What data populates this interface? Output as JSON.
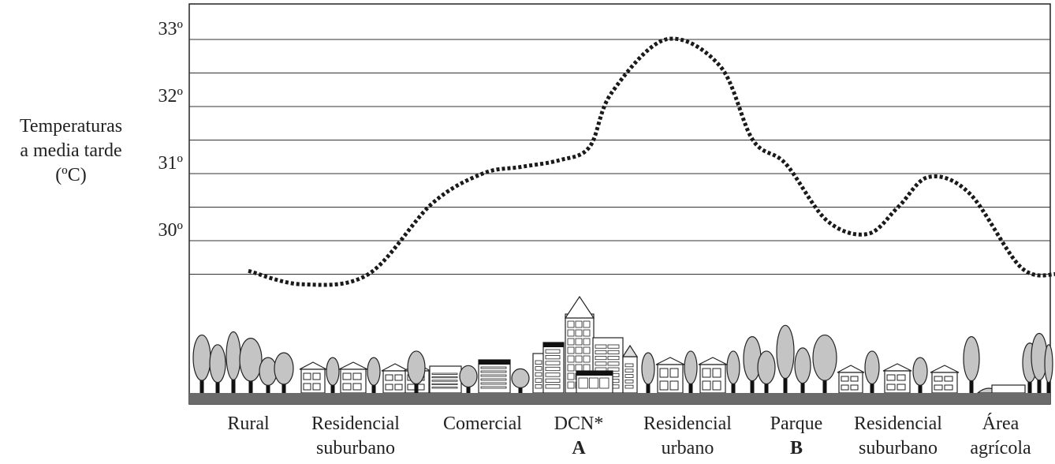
{
  "chart_data": {
    "type": "line",
    "ylabel": [
      "Temperaturas",
      "a media tarde",
      "(ºC)"
    ],
    "y_ticks": [
      "30º",
      "31º",
      "32º",
      "33º"
    ],
    "ylim": [
      29.0,
      33.5
    ],
    "grid": true,
    "line_style": "dotted",
    "categories": [
      {
        "lines": [
          "Rural"
        ],
        "mark": ""
      },
      {
        "lines": [
          "Residencial",
          "suburbano"
        ],
        "mark": ""
      },
      {
        "lines": [
          "Comercial"
        ],
        "mark": ""
      },
      {
        "lines": [
          "DCN*"
        ],
        "mark": "A"
      },
      {
        "lines": [
          "Residencial",
          "urbano"
        ],
        "mark": ""
      },
      {
        "lines": [
          "Parque"
        ],
        "mark": "B"
      },
      {
        "lines": [
          "Residencial",
          "suburbano"
        ],
        "mark": ""
      },
      {
        "lines": [
          "Área",
          "agrícola"
        ],
        "mark": ""
      }
    ],
    "series": [
      {
        "x": [
          0.0,
          0.5,
          1.1,
          1.6,
          2.0,
          2.4,
          2.8,
          3.1,
          3.3,
          3.8,
          4.3,
          4.6,
          4.9,
          5.3,
          5.7,
          6.0,
          6.3,
          6.7,
          7.2,
          7.55
        ],
        "values": [
          29.55,
          29.35,
          29.5,
          30.55,
          31.0,
          31.1,
          31.2,
          31.4,
          32.2,
          33.0,
          32.6,
          31.5,
          31.15,
          30.3,
          30.1,
          30.5,
          30.95,
          30.7,
          29.6,
          29.5
        ]
      }
    ],
    "colors": {
      "line": "#1a1a1a",
      "grid": "#333333",
      "ground": "#6b6b6b",
      "tree": "#c4c4c4",
      "trunk": "#111111",
      "building": "#ffffff",
      "outline": "#222222"
    }
  }
}
